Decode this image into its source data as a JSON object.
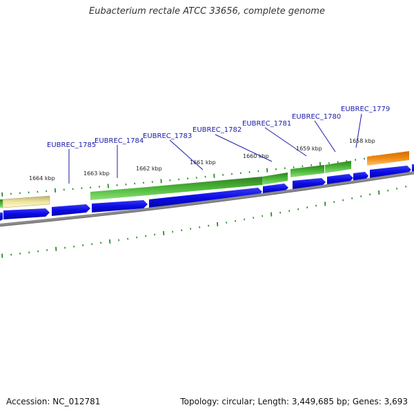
{
  "title": "Eubacterium rectale ATCC 33656, complete genome",
  "footer": {
    "accession": "Accession: NC_012781",
    "topology": "Topology: circular; Length: 3,449,685 bp; Genes: 3,693"
  },
  "colors": {
    "forward_cds": "#0a0ae6",
    "rna_gene": "#3a9c2a",
    "pseudo_gene": "#f0e6a0",
    "other_feature": "#f08a10",
    "backbone": "#8a8a8a",
    "tick": "#2a8a2a",
    "gene_label": "#1a1aa8"
  },
  "scale_labels": [
    "1664 kbp",
    "1663 kbp",
    "1662 kbp",
    "1661 kbp",
    "1660 kbp",
    "1659 kbp",
    "1658 kbp"
  ],
  "gene_labels": [
    "EUBREC_1785",
    "EUBREC_1784",
    "EUBREC_1783",
    "EUBREC_1782",
    "EUBREC_1781",
    "EUBREC_1780",
    "EUBREC_1779"
  ]
}
